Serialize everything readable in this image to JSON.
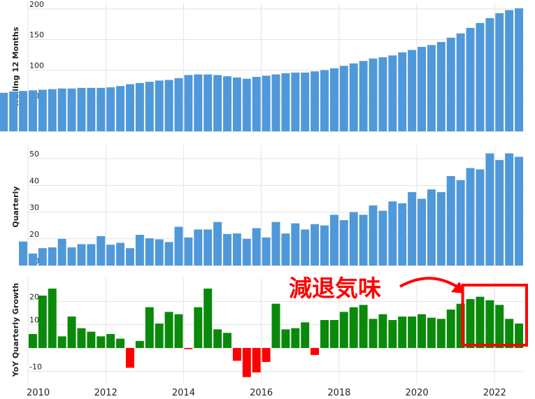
{
  "chart_data": [
    {
      "type": "bar",
      "ylabel": "Trailing 12 Months",
      "ylim": [
        0,
        210
      ],
      "yticks": [
        0,
        50,
        100,
        150,
        200
      ],
      "colors": {
        "bar": "#4f98d9"
      },
      "values": [
        60,
        61,
        63,
        65,
        66,
        67,
        68,
        69,
        70,
        70,
        71,
        71,
        71,
        72,
        74,
        77,
        79,
        81,
        83,
        84,
        87,
        92,
        93,
        93,
        92,
        90,
        88,
        86,
        89,
        91,
        93,
        95,
        96,
        96,
        98,
        100,
        103,
        107,
        111,
        115,
        119,
        121,
        124,
        129,
        133,
        138,
        141,
        146,
        153,
        160,
        169,
        177,
        185,
        193,
        198,
        201
      ]
    },
    {
      "type": "bar",
      "ylabel": "Quarterly",
      "ylim": [
        10,
        55
      ],
      "yticks": [
        10,
        20,
        30,
        40,
        50
      ],
      "colors": {
        "bar": "#4f98d9"
      },
      "values": [
        19,
        14.5,
        16.5,
        16.8,
        20,
        16.8,
        18,
        18,
        21,
        17.8,
        18.5,
        16.5,
        21.5,
        20.2,
        19.8,
        18.8,
        24.5,
        20.5,
        23.5,
        23.5,
        26.3,
        21.8,
        22,
        20,
        24,
        20.5,
        26.3,
        22,
        25.8,
        23.5,
        25.5,
        25,
        29,
        27,
        30,
        29,
        32.5,
        30.5,
        34,
        33.3,
        37.5,
        35,
        38.5,
        37.5,
        43.5,
        42,
        46.5,
        46,
        52,
        49.5,
        52,
        50.7
      ]
    },
    {
      "type": "bar",
      "ylabel": "YoY Quarterly Growth",
      "ylim": [
        -15,
        30
      ],
      "yticks": [
        -10,
        0,
        10,
        20
      ],
      "colors": {
        "positive": "#0a8a0a",
        "negative": "#ff0000"
      },
      "values": [
        6,
        22.5,
        25.5,
        5,
        13.5,
        8.5,
        7,
        5,
        6,
        4,
        -8.5,
        3,
        17.5,
        10.5,
        15.5,
        14.5,
        -0.5,
        17.5,
        25.5,
        8,
        6.5,
        -5.5,
        -12.5,
        -10.5,
        -6,
        19,
        8,
        8.5,
        11,
        -3,
        12,
        12,
        15.5,
        17.5,
        18.5,
        12.5,
        14.5,
        12,
        13.5,
        13.5,
        14.5,
        13,
        12.5,
        16.5,
        19,
        21,
        22,
        20.5,
        18.5,
        12.5,
        10.5
      ]
    }
  ],
  "x_axis": {
    "range": [
      2010,
      2022.75
    ],
    "ticks": [
      2010,
      2012,
      2014,
      2016,
      2018,
      2020,
      2022
    ]
  },
  "annotation": {
    "text": "減退気味",
    "color": "#ff0000",
    "box_range": [
      2021.25,
      2022.75
    ]
  }
}
